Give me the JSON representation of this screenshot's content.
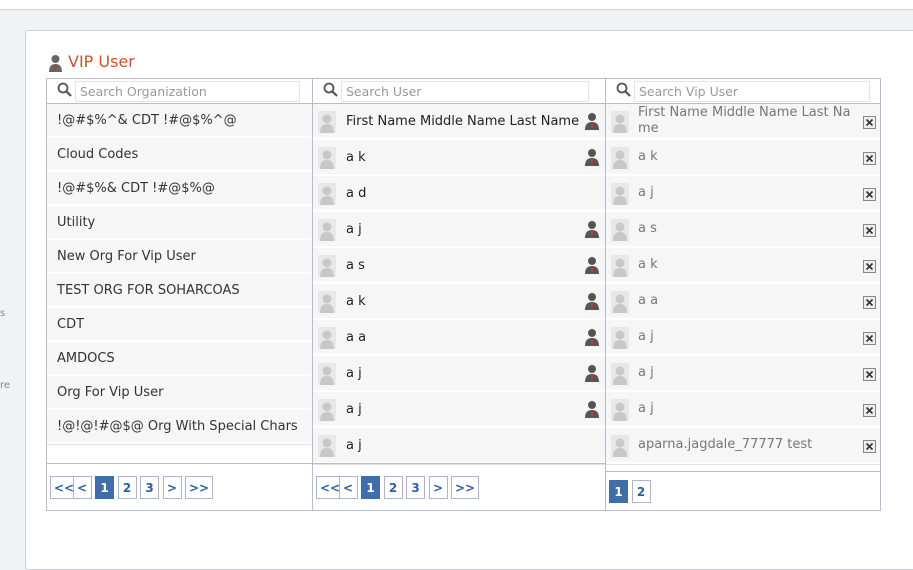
{
  "sidebar": {
    "fragments": [
      "s",
      "re"
    ]
  },
  "panel": {
    "title": "VIP User"
  },
  "organizations": {
    "search_placeholder": "Search Organization",
    "items": [
      "!@#$%^& CDT !#@$%^@",
      "Cloud Codes",
      "!@#$%& CDT !#@$%@",
      "Utility",
      "New Org For Vip User",
      "TEST ORG FOR SOHARCOAS",
      "CDT",
      "AMDOCS",
      "Org For Vip User",
      "!@!@!#@$@ Org With Special Chars"
    ],
    "pagination": [
      "<<",
      "<",
      "1",
      "2",
      "3",
      ">",
      ">>"
    ],
    "active_page": "1"
  },
  "users": {
    "search_placeholder": "Search User",
    "items": [
      {
        "name": "First Name Middle Name Last Name",
        "vip": true
      },
      {
        "name": "a k",
        "vip": true
      },
      {
        "name": "a d",
        "vip": false
      },
      {
        "name": "a j",
        "vip": true
      },
      {
        "name": "a s",
        "vip": true
      },
      {
        "name": "a k",
        "vip": true
      },
      {
        "name": "a a",
        "vip": true
      },
      {
        "name": "a j",
        "vip": true
      },
      {
        "name": "a j",
        "vip": true
      },
      {
        "name": "a j",
        "vip": false
      }
    ],
    "pagination": [
      "<<",
      "<",
      "1",
      "2",
      "3",
      ">",
      ">>"
    ],
    "active_page": "1"
  },
  "vip_users": {
    "search_placeholder": "Search Vip User",
    "items": [
      "First Name Middle Name Last Name",
      "a k",
      "a j",
      "a s",
      "a k",
      "a a",
      "a j",
      "a j",
      "a j",
      "aparna.jagdale_77777 test"
    ],
    "pagination": [
      "1",
      "2"
    ],
    "active_page": "1"
  }
}
